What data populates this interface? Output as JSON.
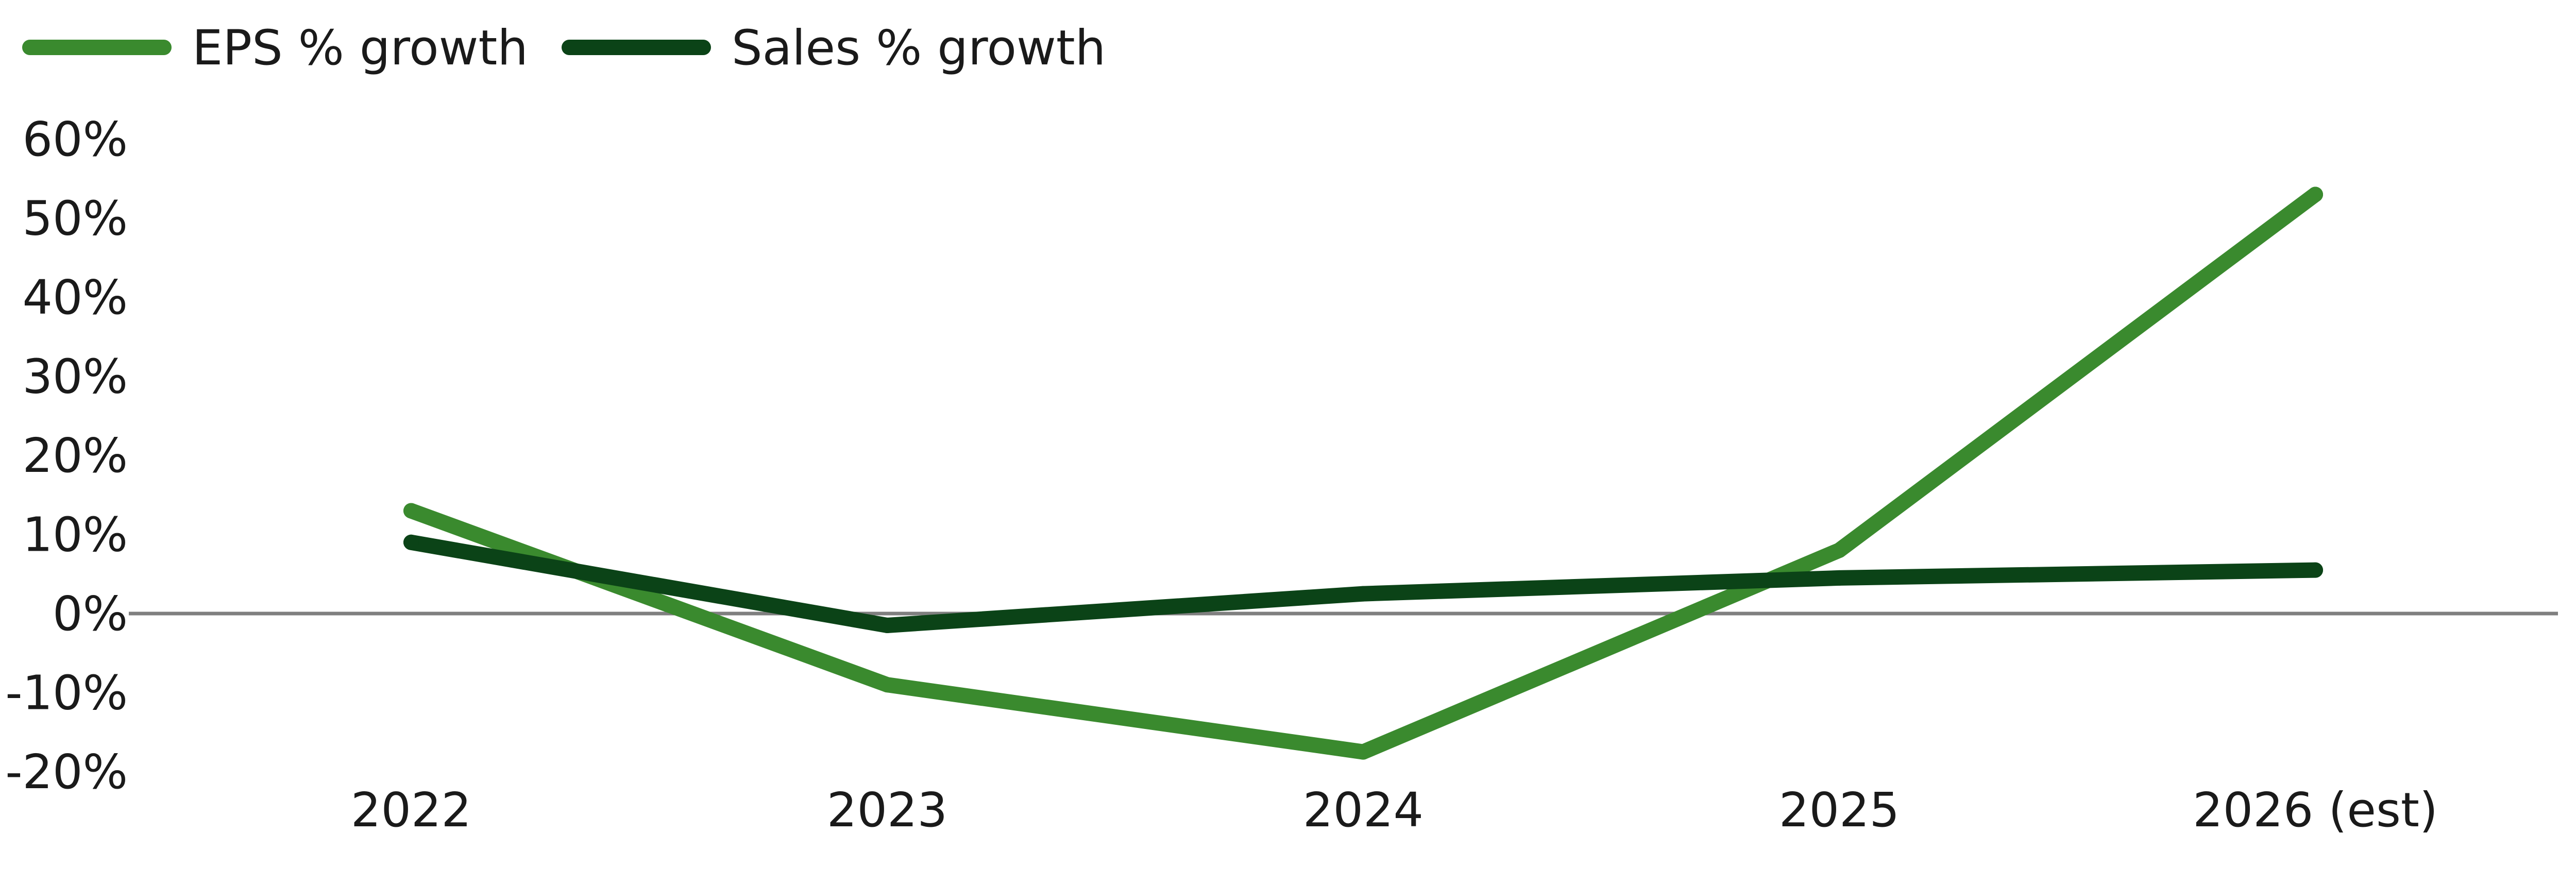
{
  "chart_data": {
    "type": "line",
    "title": "",
    "xlabel": "",
    "ylabel": "",
    "categories": [
      "2022",
      "2023",
      "2024",
      "2025",
      "2026 (est)"
    ],
    "series": [
      {
        "name": "EPS % growth",
        "color": "#3a8a2e",
        "values": [
          13,
          -9,
          -17.5,
          8,
          53
        ]
      },
      {
        "name": "Sales % growth",
        "color": "#0b4317",
        "values": [
          9,
          -1.5,
          2.5,
          4.5,
          5.5
        ]
      }
    ],
    "yticks": [
      60,
      50,
      40,
      30,
      20,
      10,
      0,
      -10,
      -20
    ],
    "ytick_labels": [
      "60%",
      "50%",
      "40%",
      "30%",
      "20%",
      "10%",
      "0%",
      "-10%",
      "-20%"
    ],
    "ylim": [
      -20,
      60
    ],
    "zero_line_color": "#7f7f7f",
    "grid": false,
    "legend_position": "top-left"
  }
}
